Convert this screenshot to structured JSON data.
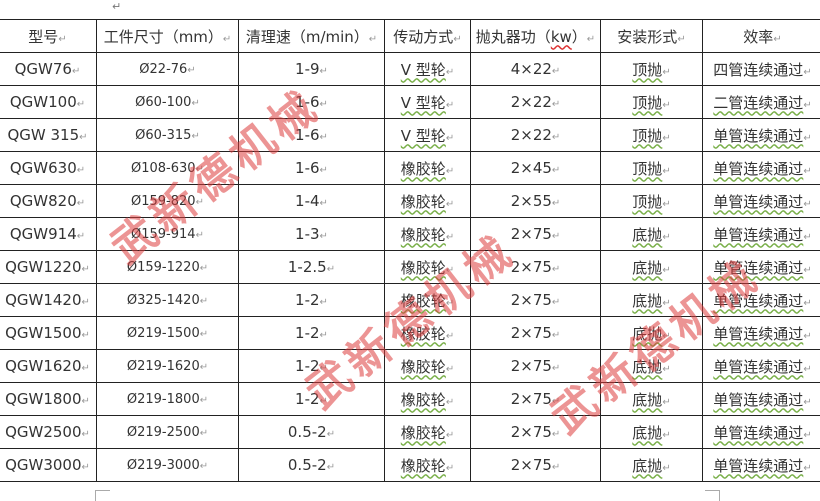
{
  "paragraph_mark": "↵",
  "cell_mark": "↵",
  "headers": [
    "型号",
    "工件尺寸（mm）",
    "清理速（m/min）",
    "传动方式",
    "抛丸器功（",
    "安装形式",
    "效率"
  ],
  "header_kw": "kw",
  "header_kw_close": "）",
  "rows": [
    [
      "QGW76",
      "Ø22-76",
      "1-9",
      "V 型轮",
      "4×22",
      "顶抛",
      "四管连续通过"
    ],
    [
      "QGW100",
      "Ø60-100",
      "1-6",
      "V 型轮",
      "2×22",
      "顶抛",
      "二管连续通过"
    ],
    [
      "QGW 315",
      "Ø60-315",
      "1-6",
      "V 型轮",
      "2×22",
      "顶抛",
      "单管连续通过"
    ],
    [
      "QGW630",
      "Ø108-630",
      "1-6",
      "橡胶轮",
      "2×45",
      "顶抛",
      "单管连续通过"
    ],
    [
      "QGW820",
      "Ø159-820",
      "1-4",
      "橡胶轮",
      "2×55",
      "顶抛",
      "单管连续通过"
    ],
    [
      "QGW914",
      "Ø159-914",
      "1-3",
      "橡胶轮",
      "2×75",
      "底抛",
      "单管连续通过"
    ],
    [
      "QGW1220",
      "Ø159-1220",
      "1-2.5",
      "橡胶轮",
      "2×75",
      "底抛",
      "单管连续通过"
    ],
    [
      "QGW1420",
      "Ø325-1420",
      "1-2",
      "橡胶轮",
      "2×75",
      "底抛",
      "单管连续通过"
    ],
    [
      "QGW1500",
      "Ø219-1500",
      "1-2",
      "橡胶轮",
      "2×75",
      "底抛",
      "单管连续通过"
    ],
    [
      "QGW1620",
      "Ø219-1620",
      "1-2",
      "橡胶轮",
      "2×75",
      "底抛",
      "单管连续通过"
    ],
    [
      "QGW1800",
      "Ø219-1800",
      "1-2",
      "橡胶轮",
      "2×75",
      "底抛",
      "单管连续通过"
    ],
    [
      "QGW2500",
      "Ø219-2500",
      "0.5-2",
      "橡胶轮",
      "2×75",
      "底抛",
      "单管连续通过"
    ],
    [
      "QGW3000",
      "Ø219-3000",
      "0.5-2",
      "橡胶轮",
      "2×75",
      "底抛",
      "单管连续通过"
    ]
  ],
  "watermark": "武新德机械",
  "watermark_color": "#dc3c3c"
}
